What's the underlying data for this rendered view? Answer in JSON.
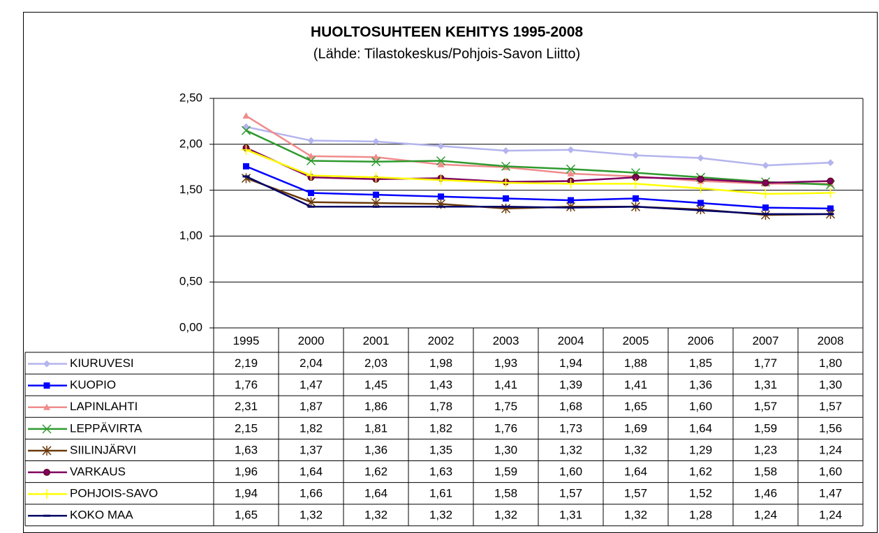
{
  "chart_data": {
    "type": "line",
    "title": "HUOLTOSUHTEEN KEHITYS 1995-2008",
    "subtitle": "(Lähde: Tilastokeskus/Pohjois-Savon Liitto)",
    "categories": [
      "1995",
      "2000",
      "2001",
      "2002",
      "2003",
      "2004",
      "2005",
      "2006",
      "2007",
      "2008"
    ],
    "ylim": [
      0,
      2.5
    ],
    "yticks": [
      {
        "value": 0,
        "label": "0,00"
      },
      {
        "value": 0.5,
        "label": "0,50"
      },
      {
        "value": 1,
        "label": "1,00"
      },
      {
        "value": 1.5,
        "label": "1,50"
      },
      {
        "value": 2,
        "label": "2,00"
      },
      {
        "value": 2.5,
        "label": "2,50"
      }
    ],
    "grid": true,
    "series": [
      {
        "name": "KIURUVESI",
        "color": "#b4b4ee",
        "marker": "diamond",
        "values": [
          2.19,
          2.04,
          2.03,
          1.98,
          1.93,
          1.94,
          1.88,
          1.85,
          1.77,
          1.8
        ],
        "value_labels": [
          "2,19",
          "2,04",
          "2,03",
          "1,98",
          "1,93",
          "1,94",
          "1,88",
          "1,85",
          "1,77",
          "1,80"
        ]
      },
      {
        "name": "KUOPIO",
        "color": "#0000ff",
        "marker": "square",
        "values": [
          1.76,
          1.47,
          1.45,
          1.43,
          1.41,
          1.39,
          1.41,
          1.36,
          1.31,
          1.3
        ],
        "value_labels": [
          "1,76",
          "1,47",
          "1,45",
          "1,43",
          "1,41",
          "1,39",
          "1,41",
          "1,36",
          "1,31",
          "1,30"
        ]
      },
      {
        "name": "LAPINLAHTI",
        "color": "#f08c8c",
        "marker": "triangle",
        "values": [
          2.31,
          1.87,
          1.86,
          1.78,
          1.75,
          1.68,
          1.65,
          1.6,
          1.57,
          1.57
        ],
        "value_labels": [
          "2,31",
          "1,87",
          "1,86",
          "1,78",
          "1,75",
          "1,68",
          "1,65",
          "1,60",
          "1,57",
          "1,57"
        ]
      },
      {
        "name": "LEPPÄVIRTA",
        "color": "#2e9a2e",
        "marker": "x",
        "values": [
          2.15,
          1.82,
          1.81,
          1.82,
          1.76,
          1.73,
          1.69,
          1.64,
          1.59,
          1.56
        ],
        "value_labels": [
          "2,15",
          "1,82",
          "1,81",
          "1,82",
          "1,76",
          "1,73",
          "1,69",
          "1,64",
          "1,59",
          "1,56"
        ]
      },
      {
        "name": "SIILINJÄRVI",
        "color": "#6b3a0a",
        "marker": "asterisk",
        "values": [
          1.63,
          1.37,
          1.36,
          1.35,
          1.3,
          1.32,
          1.32,
          1.29,
          1.23,
          1.24
        ],
        "value_labels": [
          "1,63",
          "1,37",
          "1,36",
          "1,35",
          "1,30",
          "1,32",
          "1,32",
          "1,29",
          "1,23",
          "1,24"
        ]
      },
      {
        "name": "VARKAUS",
        "color": "#800060",
        "marker": "circle",
        "values": [
          1.96,
          1.64,
          1.62,
          1.63,
          1.59,
          1.6,
          1.64,
          1.62,
          1.58,
          1.6
        ],
        "value_labels": [
          "1,96",
          "1,64",
          "1,62",
          "1,63",
          "1,59",
          "1,60",
          "1,64",
          "1,62",
          "1,58",
          "1,60"
        ]
      },
      {
        "name": "POHJOIS-SAVO",
        "color": "#ffff00",
        "marker": "plus",
        "values": [
          1.94,
          1.66,
          1.64,
          1.61,
          1.58,
          1.57,
          1.57,
          1.52,
          1.46,
          1.47
        ],
        "value_labels": [
          "1,94",
          "1,66",
          "1,64",
          "1,61",
          "1,58",
          "1,57",
          "1,57",
          "1,52",
          "1,46",
          "1,47"
        ]
      },
      {
        "name": "KOKO MAA",
        "color": "#000066",
        "marker": "dash",
        "values": [
          1.65,
          1.32,
          1.32,
          1.32,
          1.32,
          1.31,
          1.32,
          1.28,
          1.24,
          1.24
        ],
        "value_labels": [
          "1,65",
          "1,32",
          "1,32",
          "1,32",
          "1,32",
          "1,31",
          "1,32",
          "1,28",
          "1,24",
          "1,24"
        ]
      }
    ]
  }
}
